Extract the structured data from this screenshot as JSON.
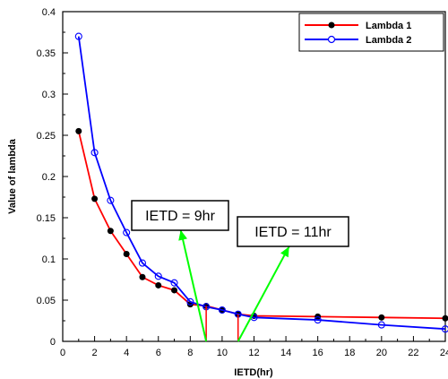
{
  "chart_data": {
    "type": "line",
    "title": "",
    "xlabel": "IETD(hr)",
    "ylabel": "Value of lambda",
    "xlim": [
      0,
      24
    ],
    "ylim": [
      0,
      0.4
    ],
    "x_ticks": [
      0,
      2,
      4,
      6,
      8,
      10,
      12,
      14,
      16,
      18,
      20,
      22,
      24
    ],
    "y_ticks": [
      0,
      0.05,
      0.1,
      0.15,
      0.2,
      0.25,
      0.3,
      0.35,
      0.4
    ],
    "grid": false,
    "legend_position": "top-right",
    "series": [
      {
        "name": "Lambda 1",
        "color": "#ff0000",
        "marker": "filled-circle",
        "x": [
          1,
          2,
          3,
          4,
          5,
          6,
          7,
          8,
          9,
          10,
          11,
          12,
          16,
          20,
          24
        ],
        "y": [
          0.255,
          0.173,
          0.134,
          0.106,
          0.078,
          0.068,
          0.062,
          0.045,
          0.043,
          0.038,
          0.033,
          0.031,
          0.03,
          0.029,
          0.028
        ]
      },
      {
        "name": "Lambda 2",
        "color": "#0000ff",
        "marker": "open-circle",
        "x": [
          1,
          2,
          3,
          4,
          5,
          6,
          7,
          8,
          9,
          10,
          11,
          12,
          16,
          20,
          24
        ],
        "y": [
          0.37,
          0.229,
          0.171,
          0.132,
          0.095,
          0.079,
          0.071,
          0.048,
          0.042,
          0.038,
          0.033,
          0.029,
          0.026,
          0.02,
          0.015
        ]
      }
    ],
    "annotations": [
      {
        "text": "IETD = 9hr",
        "arrow_from_x": 9,
        "arrow_to_x": 7.4,
        "arrow_to_y": 0.135,
        "marker_x": 9,
        "marker_y_top": 0.043,
        "color": "#00ff00",
        "marker_color": "#ff0000"
      },
      {
        "text": "IETD = 11hr",
        "arrow_from_x": 11,
        "arrow_to_x": 14.2,
        "arrow_to_y": 0.115,
        "marker_x": 11,
        "marker_y_top": 0.033,
        "color": "#00ff00",
        "marker_color": "#ff0000"
      }
    ]
  }
}
